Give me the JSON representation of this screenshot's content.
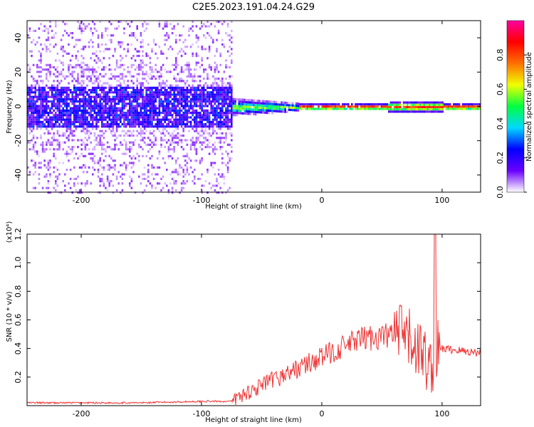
{
  "page": {
    "title": "C2E5.2023.191.04.24.G29"
  },
  "colors": {
    "snr_line": "#ee3333",
    "frame": "#000000"
  },
  "chart_data": [
    {
      "type": "heatmap",
      "title": "C2E5.2023.191.04.24.G29",
      "xlabel": "Height of straight line (km)",
      "ylabel": "Frequency (Hz)",
      "xlim": [
        -245,
        132
      ],
      "ylim": [
        -50,
        50
      ],
      "x_ticks": [
        -200,
        -100,
        0,
        100
      ],
      "y_ticks": [
        -40,
        -20,
        0,
        20,
        40
      ],
      "colorbar": {
        "label": "Normalized spectral amplitude",
        "range": [
          0,
          1
        ],
        "ticks": [
          "0.0",
          "0.2",
          "0.4",
          "0.6",
          "0.8"
        ],
        "colors": [
          "#ffffff",
          "#6a00ff",
          "#0000ff",
          "#00d8ff",
          "#00ff40",
          "#f0ff00",
          "#ff7000",
          "#ff0000",
          "#ff00a0"
        ]
      },
      "grid": false
    },
    {
      "type": "line",
      "xlabel": "Height of straight line (km)",
      "ylabel": "SNR (10 * v/v)",
      "y_multiplier": "(x10⁴)",
      "xlim": [
        -245,
        132
      ],
      "ylim": [
        0,
        1.2
      ],
      "x_ticks": [
        -200,
        -100,
        0,
        100
      ],
      "y_ticks": [
        0.2,
        0.4,
        0.6,
        0.8,
        1.0,
        1.2
      ],
      "series": [
        {
          "x": [
            -245,
            -200,
            -150,
            -100,
            -75,
            -65,
            -55,
            -45,
            -35,
            -25,
            -15,
            -5,
            5,
            15,
            25,
            35,
            45,
            55,
            65,
            75,
            80,
            85,
            88,
            90,
            92,
            95,
            100,
            110,
            120,
            132
          ],
          "values": [
            0.02,
            0.02,
            0.02,
            0.03,
            0.03,
            0.08,
            0.12,
            0.16,
            0.2,
            0.24,
            0.28,
            0.32,
            0.36,
            0.4,
            0.44,
            0.47,
            0.48,
            0.49,
            0.5,
            0.45,
            0.4,
            0.35,
            0.3,
            0.25,
            0.3,
            0.38,
            0.4,
            0.39,
            0.38,
            0.37
          ]
        }
      ],
      "grid": false
    }
  ]
}
